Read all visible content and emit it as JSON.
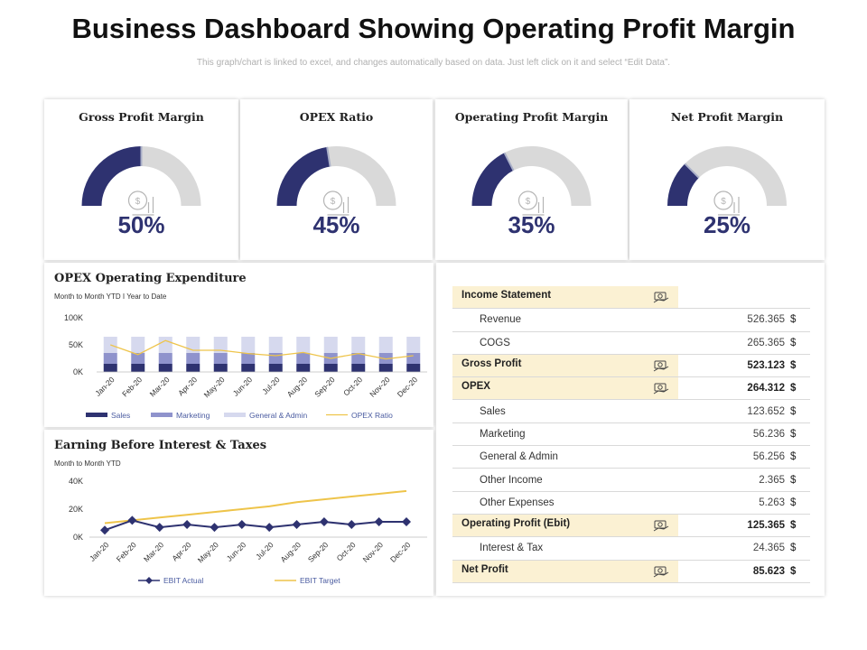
{
  "header": {
    "title": "Business Dashboard Showing Operating Profit Margin",
    "subtitle": "This graph/chart is linked to excel, and changes automatically based on data. Just left click on it and select “Edit Data”."
  },
  "colors": {
    "navy": "#2e3270",
    "mid": "#8f93cc",
    "light": "#d6d9ee",
    "gold": "#eec44a",
    "gauge_bg": "#d9d9d9",
    "highlight": "#fbf1d3"
  },
  "kpis": [
    {
      "title": "Gross Profit Margin",
      "value": "50%",
      "percent": 50,
      "icon": "money-bag-chart-icon"
    },
    {
      "title": "OPEX Ratio",
      "value": "45%",
      "percent": 45,
      "icon": "pie-chart-icon"
    },
    {
      "title": "Operating Profit Margin",
      "value": "35%",
      "percent": 35,
      "icon": "hand-coin-icon"
    },
    {
      "title": "Net Profit Margin",
      "value": "25%",
      "percent": 25,
      "icon": "hand-money-bag-icon"
    }
  ],
  "opex": {
    "title": "OPEX Operating Expenditure",
    "subtitle": "Month  to Month  YTD I Year to Date"
  },
  "ebit": {
    "title": "Earning Before Interest & Taxes",
    "subtitle": "Month to Month  YTD"
  },
  "chart_data": [
    {
      "type": "bar",
      "stacked": true,
      "title": "OPEX Operating Expenditure",
      "categories": [
        "Jan-20",
        "Feb-20",
        "Mar-20",
        "Apr-20",
        "May-20",
        "Jun-20",
        "Jul-20",
        "Aug-20",
        "Sep-20",
        "Oct-20",
        "Nov-20",
        "Dec-20"
      ],
      "series": [
        {
          "name": "Sales",
          "values": [
            15,
            15,
            15,
            15,
            15,
            15,
            15,
            15,
            15,
            15,
            15,
            15
          ]
        },
        {
          "name": "Marketing",
          "values": [
            20,
            20,
            20,
            20,
            20,
            20,
            20,
            20,
            20,
            20,
            20,
            20
          ]
        },
        {
          "name": "General & Admin",
          "values": [
            30,
            30,
            30,
            30,
            30,
            30,
            30,
            30,
            30,
            30,
            30,
            30
          ]
        }
      ],
      "line_series": {
        "name": "OPEX Ratio",
        "values": [
          50,
          32,
          58,
          40,
          40,
          34,
          30,
          36,
          25,
          34,
          24,
          30
        ]
      },
      "yticks": [
        "100K",
        "50K",
        "0K"
      ],
      "ylim": [
        0,
        100
      ]
    },
    {
      "type": "line",
      "title": "Earning Before Interest & Taxes",
      "categories": [
        "Jan-20",
        "Feb-20",
        "Mar-20",
        "Apr-20",
        "May-20",
        "Jun-20",
        "Jul-20",
        "Aug-20",
        "Sep-20",
        "Oct-20",
        "Nov-20",
        "Dec-20"
      ],
      "series": [
        {
          "name": "EBIT Actual",
          "values": [
            5,
            12,
            7,
            9,
            7,
            9,
            7,
            9,
            11,
            9,
            11,
            11
          ]
        },
        {
          "name": "EBIT Target",
          "values": [
            10,
            12,
            14,
            16,
            18,
            20,
            22,
            25,
            27,
            29,
            31,
            33
          ]
        }
      ],
      "yticks": [
        "40K",
        "20K",
        "0K"
      ],
      "ylim": [
        0,
        40
      ]
    }
  ],
  "income": {
    "rows": [
      {
        "label": "Income Statement",
        "value": "",
        "cur": "",
        "style": "hl",
        "icon": "cash-icon"
      },
      {
        "label": "Revenue",
        "value": "526.365",
        "cur": "$",
        "style": "sub"
      },
      {
        "label": "COGS",
        "value": "265.365",
        "cur": "$",
        "style": "sub"
      },
      {
        "label": "Gross  Profit",
        "value": "523.123",
        "cur": "$",
        "style": "hl",
        "icon": "hand-coin-icon"
      },
      {
        "label": "OPEX",
        "value": "264.312",
        "cur": "$",
        "style": "hl",
        "icon": "hand-cash-icon"
      },
      {
        "label": "Sales",
        "value": "123.652",
        "cur": "$",
        "style": "sub"
      },
      {
        "label": "Marketing",
        "value": "56.236",
        "cur": "$",
        "style": "sub"
      },
      {
        "label": "General & Admin",
        "value": "56.256",
        "cur": "$",
        "style": "sub"
      },
      {
        "label": "Other Income",
        "value": "2.365",
        "cur": "$",
        "style": "sub"
      },
      {
        "label": "Other Expenses",
        "value": "5.263",
        "cur": "$",
        "style": "sub"
      },
      {
        "label": "Operating Profit (Ebit)",
        "value": "125.365",
        "cur": "$",
        "style": "hl",
        "icon": "growth-chart-icon"
      },
      {
        "label": "Interest  & Tax",
        "value": "24.365",
        "cur": "$",
        "style": "sub"
      },
      {
        "label": "Net Profit",
        "value": "85.623",
        "cur": "$",
        "style": "hl",
        "icon": "money-bag-clock-icon"
      }
    ]
  }
}
